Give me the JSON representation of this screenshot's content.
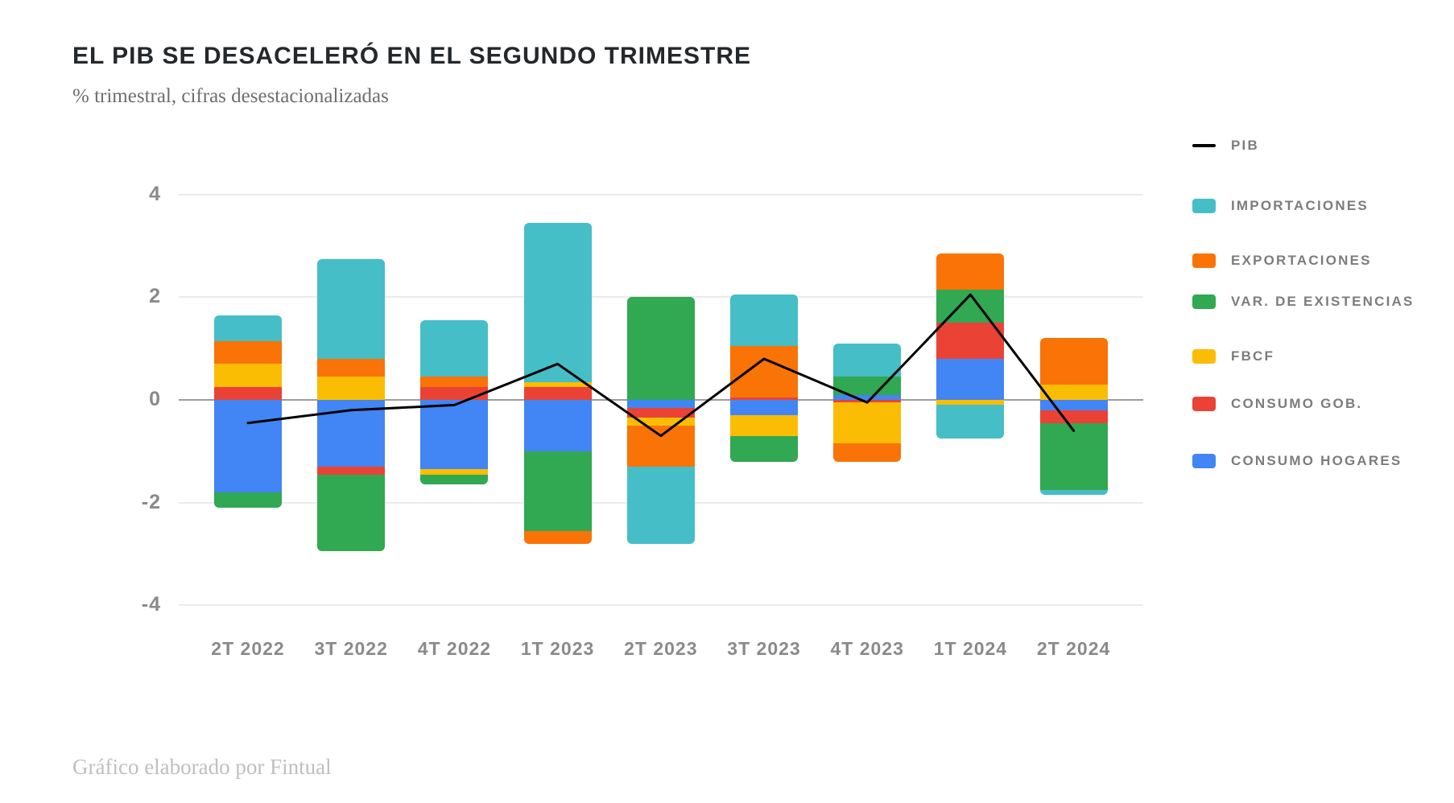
{
  "header": {
    "title": "EL PIB SE DESACELERÓ EN EL SEGUNDO TRIMESTRE",
    "subtitle": "% trimestral, cifras desestacionalizadas"
  },
  "footer": {
    "credit": "Gráfico elaborado por Fintual"
  },
  "legend": {
    "items": [
      {
        "label": "PIB",
        "type": "line",
        "color": "#000000"
      },
      {
        "label": "IMPORTACIONES",
        "type": "swatch",
        "color": "#45BEC7"
      },
      {
        "label": "EXPORTACIONES",
        "type": "swatch",
        "color": "#FA7306"
      },
      {
        "label": "VAR. DE EXISTENCIAS",
        "type": "swatch",
        "color": "#31A852"
      },
      {
        "label": "FBCF",
        "type": "swatch",
        "color": "#FBBC04"
      },
      {
        "label": "CONSUMO GOB.",
        "type": "swatch",
        "color": "#EA4335"
      },
      {
        "label": "CONSUMO HOGARES",
        "type": "swatch",
        "color": "#4285F4"
      }
    ]
  },
  "chart_data": {
    "type": "bar",
    "stacked": true,
    "title": "EL PIB SE DESACELERÓ EN EL SEGUNDO TRIMESTRE",
    "subtitle": "% trimestral, cifras desestacionalizadas",
    "categories": [
      "2T 2022",
      "3T 2022",
      "4T 2022",
      "1T 2023",
      "2T 2023",
      "3T 2023",
      "4T 2023",
      "1T 2024",
      "2T 2024"
    ],
    "series": [
      {
        "name": "CONSUMO HOGARES",
        "color": "#4285F4",
        "values": [
          -1.8,
          -1.3,
          -1.35,
          -1.0,
          -0.15,
          -0.3,
          0.1,
          0.8,
          -0.2
        ]
      },
      {
        "name": "CONSUMO GOB.",
        "color": "#EA4335",
        "values": [
          0.25,
          -0.15,
          0.25,
          0.25,
          -0.2,
          0.05,
          -0.05,
          0.7,
          -0.25
        ]
      },
      {
        "name": "FBCF",
        "color": "#FBBC04",
        "values": [
          0.45,
          0.45,
          -0.1,
          0.1,
          -0.15,
          -0.4,
          -0.8,
          -0.1,
          0.3
        ]
      },
      {
        "name": "VAR. DE EXISTENCIAS",
        "color": "#31A852",
        "values": [
          -0.3,
          -1.5,
          -0.2,
          -1.55,
          2.0,
          -0.5,
          0.35,
          0.65,
          -1.3
        ]
      },
      {
        "name": "EXPORTACIONES",
        "color": "#FA7306",
        "values": [
          0.45,
          0.35,
          0.2,
          -0.25,
          -0.8,
          1.0,
          -0.35,
          0.7,
          0.9
        ]
      },
      {
        "name": "IMPORTACIONES",
        "color": "#45BEC7",
        "values": [
          0.5,
          1.95,
          1.1,
          3.1,
          -1.5,
          1.0,
          0.65,
          -0.65,
          -0.1
        ]
      }
    ],
    "line_series": {
      "name": "PIB",
      "color": "#000000",
      "values": [
        -0.45,
        -0.2,
        -0.1,
        0.7,
        -0.7,
        0.8,
        -0.05,
        2.05,
        -0.6
      ]
    },
    "ylim": [
      -4,
      4
    ],
    "yticks": [
      4,
      2,
      0,
      -2,
      -4
    ],
    "grid": "horizontal",
    "legend_position": "right"
  }
}
